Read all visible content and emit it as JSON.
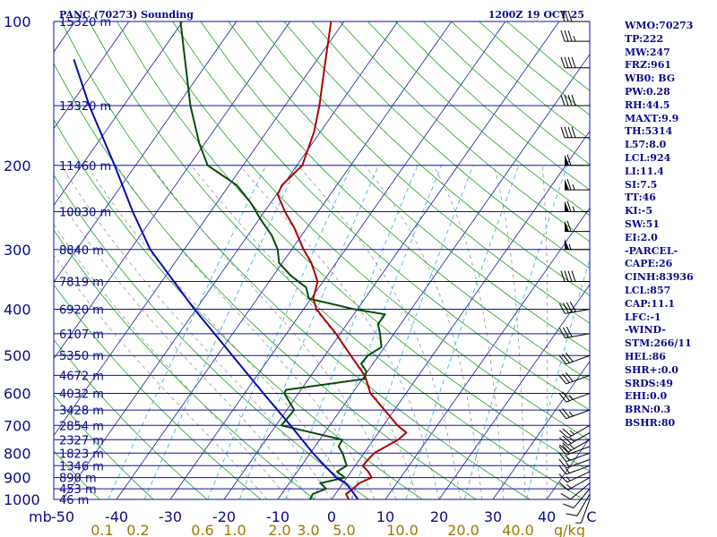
{
  "chart_data": {
    "type": "line",
    "title_left": "PANC (70273) Sounding",
    "title_right": "1200Z 19 OCT 25",
    "x_axis": {
      "label": "mb",
      "ticks": [
        "-50",
        "-40",
        "-30",
        "-20",
        "-10",
        "0",
        "10",
        "20",
        "30",
        "40",
        "C"
      ],
      "range": [
        -50,
        50
      ]
    },
    "mixing_ratio_axis": {
      "unit": "g/kg",
      "ticks": [
        "0.1",
        "0.2",
        "0.6",
        "1.0",
        "2.0",
        "3.0",
        "5.0",
        "10.0",
        "20.0",
        "40.0"
      ]
    },
    "pressure_levels": [
      {
        "mb": "100",
        "height": "15320 m"
      },
      {
        "mb": "150",
        "height": "13320 m"
      },
      {
        "mb": "200",
        "height": "11460 m"
      },
      {
        "mb": "250",
        "height": "10030 m"
      },
      {
        "mb": "300",
        "height": "8840 m"
      },
      {
        "mb": "350",
        "height": "7819 m"
      },
      {
        "mb": "400",
        "height": "6920 m"
      },
      {
        "mb": "450",
        "height": "6107 m"
      },
      {
        "mb": "500",
        "height": "5350 m"
      },
      {
        "mb": "550",
        "height": "4672 m"
      },
      {
        "mb": "600",
        "height": "4032 m"
      },
      {
        "mb": "650",
        "height": "3428 m"
      },
      {
        "mb": "700",
        "height": "2854 m"
      },
      {
        "mb": "750",
        "height": "2327 m"
      },
      {
        "mb": "800",
        "height": "1823 m"
      },
      {
        "mb": "850",
        "height": "1346 m"
      },
      {
        "mb": "900",
        "height": "890 m"
      },
      {
        "mb": "950",
        "height": "453 m"
      },
      {
        "mb": "1000",
        "height": "46 m"
      }
    ],
    "pressure_labels_shown": [
      "100",
      "200",
      "300",
      "400",
      "500",
      "600",
      "700",
      "800",
      "900",
      "1000"
    ],
    "series": [
      {
        "name": "Temperature",
        "color": "#b00000",
        "points": [
          {
            "p": 1000,
            "t": 3.2
          },
          {
            "p": 975,
            "t": 2.0
          },
          {
            "p": 950,
            "t": 2.6
          },
          {
            "p": 925,
            "t": 3.0
          },
          {
            "p": 900,
            "t": 4.6
          },
          {
            "p": 875,
            "t": 3.2
          },
          {
            "p": 850,
            "t": 1.4
          },
          {
            "p": 825,
            "t": 1.6
          },
          {
            "p": 800,
            "t": 1.9
          },
          {
            "p": 775,
            "t": 3.2
          },
          {
            "p": 750,
            "t": 4.6
          },
          {
            "p": 725,
            "t": 5.2
          },
          {
            "p": 700,
            "t": 2.6
          },
          {
            "p": 650,
            "t": -1.8
          },
          {
            "p": 600,
            "t": -6.6
          },
          {
            "p": 550,
            "t": -10.0
          },
          {
            "p": 500,
            "t": -15.2
          },
          {
            "p": 450,
            "t": -20.8
          },
          {
            "p": 400,
            "t": -27.6
          },
          {
            "p": 380,
            "t": -29.6
          },
          {
            "p": 350,
            "t": -31.0
          },
          {
            "p": 320,
            "t": -34.6
          },
          {
            "p": 300,
            "t": -37.8
          },
          {
            "p": 270,
            "t": -42.4
          },
          {
            "p": 250,
            "t": -46.2
          },
          {
            "p": 230,
            "t": -49.8
          },
          {
            "p": 220,
            "t": -50.2
          },
          {
            "p": 200,
            "t": -49.0
          },
          {
            "p": 170,
            "t": -51.2
          },
          {
            "p": 150,
            "t": -53.6
          },
          {
            "p": 125,
            "t": -57.6
          },
          {
            "p": 100,
            "t": -62.4
          }
        ]
      },
      {
        "name": "Dewpoint",
        "color": "#0a4a0a",
        "points": [
          {
            "p": 1000,
            "t": -4.0
          },
          {
            "p": 975,
            "t": -4.2
          },
          {
            "p": 950,
            "t": -2.4
          },
          {
            "p": 925,
            "t": -4.2
          },
          {
            "p": 900,
            "t": -0.4
          },
          {
            "p": 875,
            "t": -2.6
          },
          {
            "p": 850,
            "t": -1.6
          },
          {
            "p": 800,
            "t": -4.0
          },
          {
            "p": 775,
            "t": -5.6
          },
          {
            "p": 750,
            "t": -5.8
          },
          {
            "p": 700,
            "t": -19.0
          },
          {
            "p": 650,
            "t": -18.6
          },
          {
            "p": 600,
            "t": -22.6
          },
          {
            "p": 590,
            "t": -22.8
          },
          {
            "p": 560,
            "t": -9.6
          },
          {
            "p": 540,
            "t": -10.2
          },
          {
            "p": 520,
            "t": -12.2
          },
          {
            "p": 500,
            "t": -12.0
          },
          {
            "p": 480,
            "t": -10.6
          },
          {
            "p": 450,
            "t": -12.6
          },
          {
            "p": 430,
            "t": -14.2
          },
          {
            "p": 410,
            "t": -14.2
          },
          {
            "p": 400,
            "t": -20.6
          },
          {
            "p": 380,
            "t": -30.4
          },
          {
            "p": 360,
            "t": -32.4
          },
          {
            "p": 340,
            "t": -36.8
          },
          {
            "p": 320,
            "t": -40.6
          },
          {
            "p": 300,
            "t": -42.6
          },
          {
            "p": 280,
            "t": -45.6
          },
          {
            "p": 260,
            "t": -49.6
          },
          {
            "p": 240,
            "t": -53.6
          },
          {
            "p": 220,
            "t": -58.6
          },
          {
            "p": 200,
            "t": -66.6
          },
          {
            "p": 180,
            "t": -71.0
          },
          {
            "p": 150,
            "t": -77.6
          },
          {
            "p": 100,
            "t": -90.4
          }
        ]
      },
      {
        "name": "Parcel",
        "color": "#0a0ab0",
        "points": [
          {
            "p": 1000,
            "t": 4.9
          },
          {
            "p": 950,
            "t": 2.1
          },
          {
            "p": 925,
            "t": 0.5
          },
          {
            "p": 900,
            "t": -2.0
          },
          {
            "p": 850,
            "t": -5.7
          },
          {
            "p": 800,
            "t": -9.5
          },
          {
            "p": 700,
            "t": -17.3
          },
          {
            "p": 600,
            "t": -26.5
          },
          {
            "p": 500,
            "t": -37.2
          },
          {
            "p": 400,
            "t": -50.3
          },
          {
            "p": 300,
            "t": -66.3
          },
          {
            "p": 250,
            "t": -74.5
          },
          {
            "p": 200,
            "t": -83.9
          },
          {
            "p": 150,
            "t": -96.4
          },
          {
            "p": 120,
            "t": -105.3
          }
        ]
      }
    ],
    "winds": [
      {
        "p": 1000,
        "dir": 200,
        "kt": 5
      },
      {
        "p": 975,
        "dir": 210,
        "kt": 10
      },
      {
        "p": 950,
        "dir": 220,
        "kt": 10
      },
      {
        "p": 925,
        "dir": 230,
        "kt": 10
      },
      {
        "p": 900,
        "dir": 240,
        "kt": 15
      },
      {
        "p": 875,
        "dir": 245,
        "kt": 15
      },
      {
        "p": 850,
        "dir": 250,
        "kt": 15
      },
      {
        "p": 825,
        "dir": 250,
        "kt": 15
      },
      {
        "p": 800,
        "dir": 250,
        "kt": 15
      },
      {
        "p": 775,
        "dir": 250,
        "kt": 20
      },
      {
        "p": 750,
        "dir": 240,
        "kt": 25
      },
      {
        "p": 725,
        "dir": 240,
        "kt": 25
      },
      {
        "p": 700,
        "dir": 240,
        "kt": 25
      },
      {
        "p": 650,
        "dir": 250,
        "kt": 25
      },
      {
        "p": 600,
        "dir": 250,
        "kt": 25
      },
      {
        "p": 550,
        "dir": 250,
        "kt": 30
      },
      {
        "p": 500,
        "dir": 250,
        "kt": 30
      },
      {
        "p": 450,
        "dir": 260,
        "kt": 30
      },
      {
        "p": 400,
        "dir": 260,
        "kt": 40
      },
      {
        "p": 350,
        "dir": 270,
        "kt": 40
      },
      {
        "p": 300,
        "dir": 270,
        "kt": 55
      },
      {
        "p": 275,
        "dir": 270,
        "kt": 60
      },
      {
        "p": 250,
        "dir": 270,
        "kt": 65
      },
      {
        "p": 225,
        "dir": 270,
        "kt": 65
      },
      {
        "p": 200,
        "dir": 270,
        "kt": 60
      },
      {
        "p": 175,
        "dir": 270,
        "kt": 40
      },
      {
        "p": 150,
        "dir": 270,
        "kt": 40
      },
      {
        "p": 125,
        "dir": 270,
        "kt": 40
      },
      {
        "p": 110,
        "dir": 270,
        "kt": 35
      },
      {
        "p": 100,
        "dir": 270,
        "kt": 30
      }
    ],
    "indices": [
      "WMO:70273",
      "TP:222",
      "MW:247",
      "FRZ:961",
      "WB0: BG",
      "PW:0.28",
      "RH:44.5",
      "MAXT:9.9",
      "TH:5314",
      "L57:8.0",
      "LCL:924",
      "LI:11.4",
      "SI:7.5",
      "TT:46",
      "KI:-5",
      "SW:51",
      "EI:2.0",
      "-PARCEL-",
      "CAPE:26",
      "CINH:83936",
      "LCL:857",
      "CAP:11.1",
      "LFC:-1",
      "-WIND-",
      "STM:266/11",
      "HEL:86",
      "SHR+:0.0",
      "SRDS:49",
      "EHI:0.0",
      "BRN:0.3",
      "BSHR:80"
    ],
    "colors": {
      "isobar": "#1010a0",
      "isotherm": "#1a1aa0",
      "dry_adiabat": "#22a022",
      "mixing_ratio": "#38a8e0",
      "moist_adiabat": "#777777",
      "label": "#0a0a8c",
      "mixing_ratio_label": "#a07800"
    }
  }
}
